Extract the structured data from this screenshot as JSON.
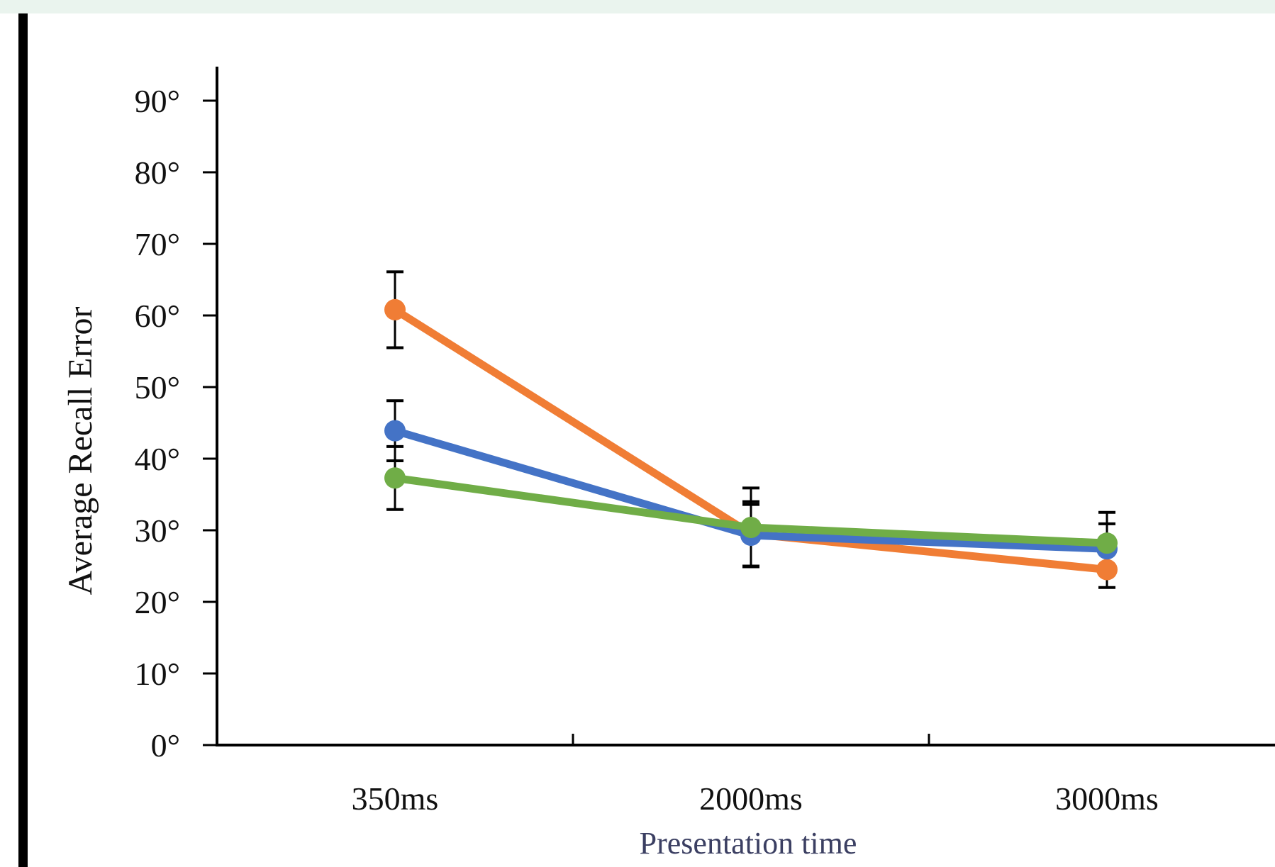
{
  "chart_data": {
    "type": "line",
    "categories": [
      "350ms",
      "2000ms",
      "3000ms"
    ],
    "xlabel": "Presentation time",
    "ylabel": "Average Recall Error",
    "ylim": [
      0,
      95
    ],
    "yticks": [
      0,
      10,
      20,
      30,
      40,
      50,
      60,
      70,
      80,
      90
    ],
    "ytick_labels": [
      "0°",
      "10°",
      "20°",
      "30°",
      "40°",
      "50°",
      "60°",
      "70°",
      "80°",
      "90°"
    ],
    "grid": false,
    "legend": "none",
    "series": [
      {
        "color": "#f07d35",
        "values": [
          60.8,
          29.5,
          24.5
        ],
        "error": [
          5.3,
          4.5,
          2.5
        ]
      },
      {
        "color": "#4473c6",
        "values": [
          43.9,
          29.3,
          27.4
        ],
        "error": [
          4.2,
          4.3,
          3.5
        ]
      },
      {
        "color": "#70ad47",
        "values": [
          37.3,
          30.4,
          28.2
        ],
        "error": [
          4.4,
          5.5,
          4.3
        ]
      }
    ]
  }
}
